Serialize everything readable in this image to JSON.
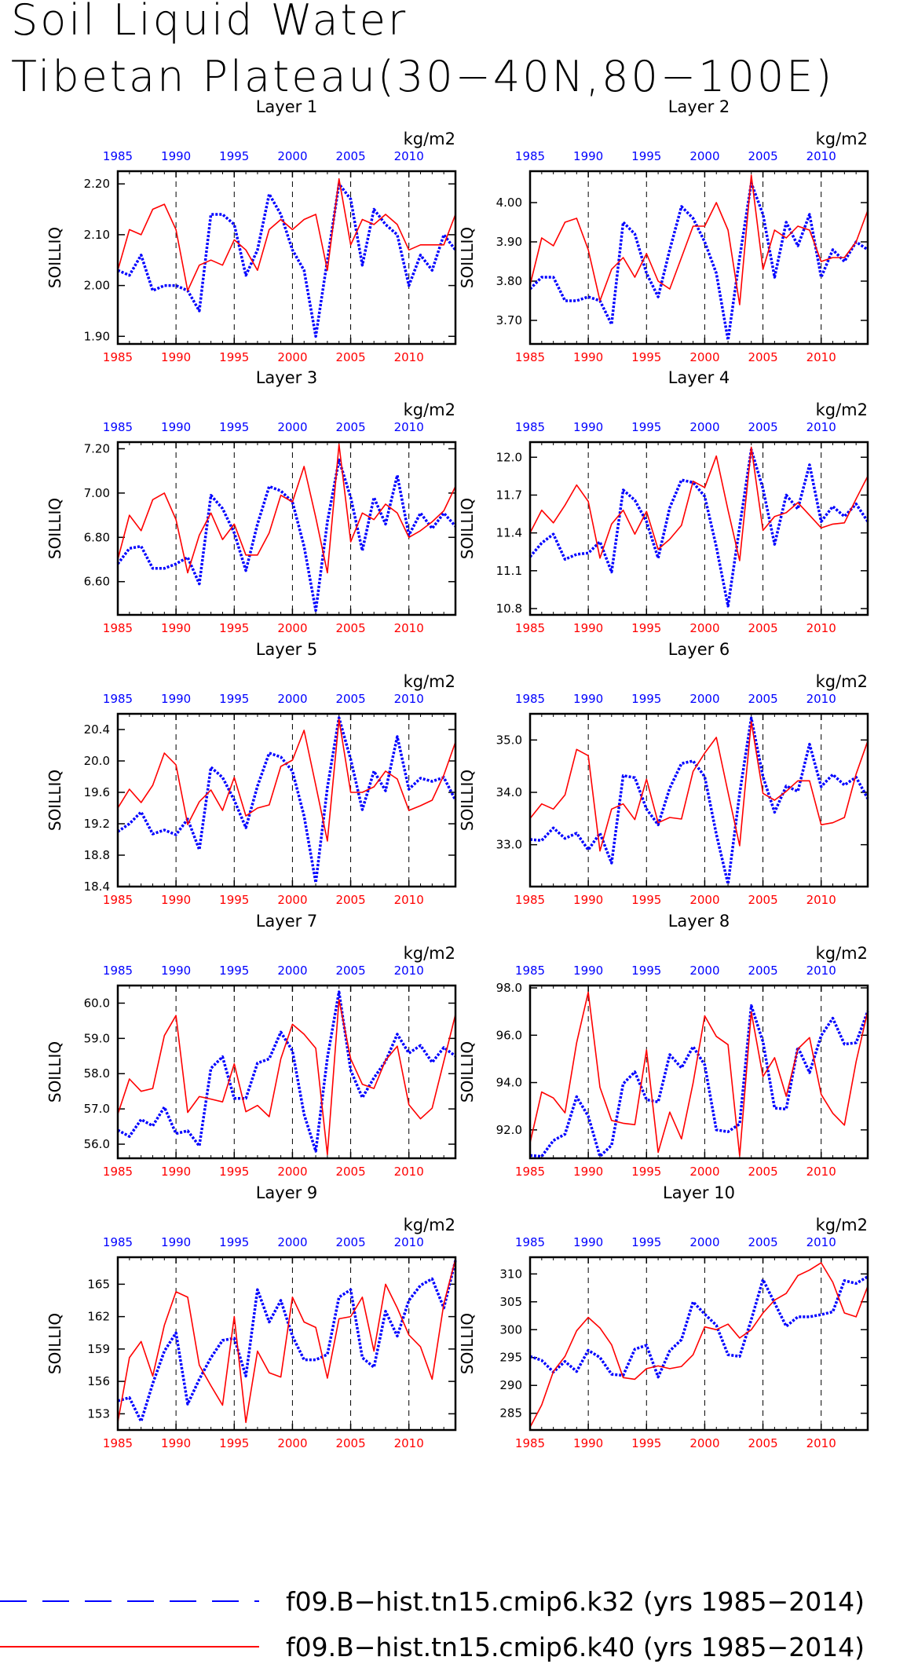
{
  "figure": {
    "title_line1": "Soil Liquid Water",
    "title_line2": "Tibetan Plateau(30−40N,80−100E)",
    "units": "kg/m2",
    "ylabel": "SOILLIQ",
    "colors": {
      "k32": "#0000ff",
      "k40": "#ff0000",
      "axis": "#000000"
    }
  },
  "legend": [
    {
      "label": "f09.B−hist.tn15.cmip6.k32 (yrs 1985−2014)",
      "color": "#0000ff",
      "style": "dashed"
    },
    {
      "label": "f09.B−hist.tn15.cmip6.k40 (yrs 1985−2014)",
      "color": "#ff0000",
      "style": "solid"
    }
  ],
  "chart_data": [
    {
      "type": "line",
      "title": "Layer 1",
      "ylabel": "SOILLIQ",
      "xlim": [
        1985,
        2014
      ],
      "ylim": [
        1.885,
        2.225
      ],
      "xticks": [
        "1985",
        "1990",
        "1995",
        "2000",
        "2005",
        "2010"
      ],
      "yticks": [
        "1.90",
        "2.00",
        "2.10",
        "2.20"
      ],
      "series": [
        {
          "name": "f09.B−hist.tn15.cmip6.k32",
          "color": "#0000ff",
          "values": [
            2.03,
            2.02,
            2.06,
            1.99,
            2.0,
            2.0,
            1.99,
            1.95,
            2.14,
            2.14,
            2.12,
            2.02,
            2.07,
            2.18,
            2.14,
            2.07,
            2.03,
            1.9,
            2.05,
            2.2,
            2.17,
            2.04,
            2.15,
            2.12,
            2.1,
            2.0,
            2.06,
            2.03,
            2.1,
            2.07
          ]
        },
        {
          "name": "f09.B−hist.tn15.cmip6.k40",
          "color": "#ff0000",
          "values": [
            2.03,
            2.11,
            2.1,
            2.15,
            2.16,
            2.11,
            1.99,
            2.04,
            2.05,
            2.04,
            2.09,
            2.07,
            2.03,
            2.11,
            2.13,
            2.11,
            2.13,
            2.14,
            2.03,
            2.21,
            2.08,
            2.13,
            2.12,
            2.14,
            2.12,
            2.07,
            2.08,
            2.08,
            2.08,
            2.14
          ]
        }
      ]
    },
    {
      "type": "line",
      "title": "Layer 2",
      "ylabel": "SOILLIQ",
      "xlim": [
        1985,
        2014
      ],
      "ylim": [
        3.64,
        4.08
      ],
      "xticks": [
        "1985",
        "1990",
        "1995",
        "2000",
        "2005",
        "2010"
      ],
      "yticks": [
        "3.70",
        "3.80",
        "3.90",
        "4.00"
      ],
      "series": [
        {
          "name": "f09.B−hist.tn15.cmip6.k32",
          "color": "#0000ff",
          "values": [
            3.78,
            3.81,
            3.81,
            3.75,
            3.75,
            3.76,
            3.75,
            3.69,
            3.95,
            3.92,
            3.82,
            3.76,
            3.88,
            3.99,
            3.96,
            3.9,
            3.82,
            3.65,
            3.86,
            4.05,
            3.97,
            3.81,
            3.95,
            3.89,
            3.97,
            3.81,
            3.88,
            3.85,
            3.9,
            3.88
          ]
        },
        {
          "name": "f09.B−hist.tn15.cmip6.k40",
          "color": "#ff0000",
          "values": [
            3.79,
            3.91,
            3.89,
            3.95,
            3.96,
            3.88,
            3.75,
            3.83,
            3.86,
            3.81,
            3.87,
            3.8,
            3.78,
            3.86,
            3.94,
            3.94,
            4.0,
            3.93,
            3.74,
            4.07,
            3.83,
            3.93,
            3.91,
            3.94,
            3.93,
            3.85,
            3.86,
            3.86,
            3.9,
            3.98
          ]
        }
      ]
    },
    {
      "type": "line",
      "title": "Layer 3",
      "ylabel": "SOILLIQ",
      "xlim": [
        1985,
        2014
      ],
      "ylim": [
        6.45,
        7.23
      ],
      "xticks": [
        "1985",
        "1990",
        "1995",
        "2000",
        "2005",
        "2010"
      ],
      "yticks": [
        "6.60",
        "6.80",
        "7.00",
        "7.20"
      ],
      "series": [
        {
          "name": "f09.B−hist.tn15.cmip6.k32",
          "color": "#0000ff",
          "values": [
            6.68,
            6.75,
            6.76,
            6.66,
            6.66,
            6.68,
            6.71,
            6.59,
            6.99,
            6.93,
            6.82,
            6.65,
            6.86,
            7.03,
            7.01,
            6.96,
            6.76,
            6.47,
            6.87,
            7.15,
            6.98,
            6.74,
            6.98,
            6.86,
            7.08,
            6.81,
            6.91,
            6.84,
            6.91,
            6.85
          ]
        },
        {
          "name": "f09.B−hist.tn15.cmip6.k40",
          "color": "#ff0000",
          "values": [
            6.7,
            6.9,
            6.83,
            6.97,
            7.0,
            6.88,
            6.64,
            6.81,
            6.91,
            6.79,
            6.86,
            6.72,
            6.72,
            6.82,
            6.99,
            6.96,
            7.12,
            6.89,
            6.64,
            7.22,
            6.78,
            6.91,
            6.88,
            6.95,
            6.91,
            6.8,
            6.83,
            6.87,
            6.92,
            7.03
          ]
        }
      ]
    },
    {
      "type": "line",
      "title": "Layer 4",
      "ylabel": "SOILLIQ",
      "xlim": [
        1985,
        2014
      ],
      "ylim": [
        10.75,
        12.12
      ],
      "xticks": [
        "1985",
        "1990",
        "1995",
        "2000",
        "2005",
        "2010"
      ],
      "yticks": [
        "10.8",
        "11.1",
        "11.4",
        "11.7",
        "12.0"
      ],
      "series": [
        {
          "name": "f09.B−hist.tn15.cmip6.k32",
          "color": "#0000ff",
          "values": [
            11.21,
            11.32,
            11.39,
            11.19,
            11.23,
            11.24,
            11.33,
            11.09,
            11.74,
            11.66,
            11.49,
            11.2,
            11.6,
            11.82,
            11.8,
            11.69,
            11.29,
            10.82,
            11.45,
            12.06,
            11.75,
            11.31,
            11.7,
            11.59,
            11.94,
            11.49,
            11.61,
            11.53,
            11.63,
            11.49
          ]
        },
        {
          "name": "f09.B−hist.tn15.cmip6.k40",
          "color": "#ff0000",
          "values": [
            11.4,
            11.58,
            11.48,
            11.62,
            11.78,
            11.65,
            11.2,
            11.47,
            11.58,
            11.39,
            11.57,
            11.27,
            11.35,
            11.46,
            11.81,
            11.76,
            12.01,
            11.58,
            11.18,
            12.08,
            11.42,
            11.53,
            11.56,
            11.64,
            11.54,
            11.44,
            11.47,
            11.48,
            11.67,
            11.85
          ]
        }
      ]
    },
    {
      "type": "line",
      "title": "Layer 5",
      "ylabel": "SOILLIQ",
      "xlim": [
        1985,
        2014
      ],
      "ylim": [
        18.4,
        20.6
      ],
      "xticks": [
        "1985",
        "1990",
        "1995",
        "2000",
        "2005",
        "2010"
      ],
      "yticks": [
        "18.4",
        "18.8",
        "19.2",
        "19.6",
        "20.0",
        "20.4"
      ],
      "series": [
        {
          "name": "f09.B−hist.tn15.cmip6.k32",
          "color": "#0000ff",
          "values": [
            19.1,
            19.2,
            19.35,
            19.07,
            19.12,
            19.06,
            19.26,
            18.87,
            19.92,
            19.79,
            19.5,
            19.15,
            19.68,
            20.1,
            20.05,
            19.87,
            19.3,
            18.45,
            19.66,
            20.55,
            20.02,
            19.38,
            19.87,
            19.62,
            20.31,
            19.64,
            19.78,
            19.74,
            19.79,
            19.5
          ]
        },
        {
          "name": "f09.B−hist.tn15.cmip6.k40",
          "color": "#ff0000",
          "values": [
            19.4,
            19.64,
            19.47,
            19.69,
            20.1,
            19.95,
            19.19,
            19.48,
            19.63,
            19.37,
            19.79,
            19.3,
            19.4,
            19.44,
            19.93,
            20.01,
            20.39,
            19.69,
            18.98,
            20.53,
            19.6,
            19.6,
            19.67,
            19.87,
            19.77,
            19.37,
            19.43,
            19.5,
            19.82,
            20.24
          ]
        }
      ]
    },
    {
      "type": "line",
      "title": "Layer 6",
      "ylabel": "SOILLIQ",
      "xlim": [
        1985,
        2014
      ],
      "ylim": [
        32.2,
        35.5
      ],
      "xticks": [
        "1985",
        "1990",
        "1995",
        "2000",
        "2005",
        "2010"
      ],
      "yticks": [
        "33.0",
        "34.0",
        "35.0"
      ],
      "series": [
        {
          "name": "f09.B−hist.tn15.cmip6.k32",
          "color": "#0000ff",
          "values": [
            33.1,
            33.08,
            33.32,
            33.12,
            33.22,
            32.9,
            33.22,
            32.65,
            34.32,
            34.28,
            33.68,
            33.38,
            34.08,
            34.55,
            34.6,
            34.3,
            33.2,
            32.25,
            33.98,
            35.42,
            34.3,
            33.62,
            34.12,
            34.02,
            34.92,
            34.11,
            34.34,
            34.14,
            34.29,
            33.88
          ]
        },
        {
          "name": "f09.B−hist.tn15.cmip6.k40",
          "color": "#ff0000",
          "values": [
            33.5,
            33.78,
            33.68,
            33.95,
            34.82,
            34.7,
            32.88,
            33.68,
            33.78,
            33.48,
            34.25,
            33.42,
            33.52,
            33.49,
            34.4,
            34.75,
            35.05,
            34.0,
            32.98,
            35.35,
            33.98,
            33.85,
            34.02,
            34.22,
            34.22,
            33.38,
            33.42,
            33.52,
            34.35,
            34.98
          ]
        }
      ]
    },
    {
      "type": "line",
      "title": "Layer 7",
      "ylabel": "SOILLIQ",
      "xlim": [
        1985,
        2014
      ],
      "ylim": [
        55.6,
        60.5
      ],
      "xticks": [
        "1985",
        "1990",
        "1995",
        "2000",
        "2005",
        "2010"
      ],
      "yticks": [
        "56.0",
        "57.0",
        "58.0",
        "59.0",
        "60.0"
      ],
      "series": [
        {
          "name": "f09.B−hist.tn15.cmip6.k32",
          "color": "#0000ff",
          "values": [
            56.4,
            56.22,
            56.7,
            56.52,
            57.05,
            56.3,
            56.38,
            55.95,
            58.15,
            58.48,
            57.3,
            57.3,
            58.3,
            58.42,
            59.18,
            58.65,
            56.85,
            55.8,
            58.45,
            60.32,
            58.1,
            57.32,
            57.88,
            58.35,
            59.12,
            58.58,
            58.8,
            58.32,
            58.74,
            58.5
          ]
        },
        {
          "name": "f09.B−hist.tn15.cmip6.k40",
          "color": "#ff0000",
          "values": [
            56.85,
            57.85,
            57.5,
            57.58,
            59.08,
            59.65,
            56.9,
            57.35,
            57.28,
            57.2,
            58.28,
            56.92,
            57.1,
            56.78,
            58.42,
            59.4,
            59.12,
            58.72,
            55.7,
            60.1,
            58.42,
            57.7,
            57.58,
            58.38,
            58.78,
            57.12,
            56.72,
            57.02,
            58.35,
            59.68
          ]
        }
      ]
    },
    {
      "type": "line",
      "title": "Layer 8",
      "ylabel": "SOILLIQ",
      "xlim": [
        1985,
        2014
      ],
      "ylim": [
        90.8,
        98.1
      ],
      "xticks": [
        "1985",
        "1990",
        "1995",
        "2000",
        "2005",
        "2010"
      ],
      "yticks": [
        "92.0",
        "94.0",
        "96.0",
        "98.0"
      ],
      "series": [
        {
          "name": "f09.B−hist.tn15.cmip6.k32",
          "color": "#0000ff",
          "values": [
            90.92,
            90.88,
            91.55,
            91.82,
            93.4,
            92.58,
            90.88,
            91.35,
            93.95,
            94.45,
            93.28,
            93.18,
            95.18,
            94.62,
            95.52,
            94.75,
            92.0,
            91.92,
            92.25,
            97.25,
            95.72,
            92.92,
            92.88,
            95.5,
            94.42,
            95.98,
            96.72,
            95.62,
            95.68,
            97.02
          ]
        },
        {
          "name": "f09.B−hist.tn15.cmip6.k40",
          "color": "#ff0000",
          "values": [
            91.45,
            93.6,
            93.35,
            92.72,
            95.68,
            97.82,
            93.8,
            92.4,
            92.28,
            92.22,
            95.38,
            91.05,
            92.75,
            91.62,
            93.98,
            96.82,
            95.95,
            95.6,
            90.9,
            96.98,
            94.25,
            95.05,
            93.42,
            95.42,
            95.9,
            93.5,
            92.7,
            92.2,
            94.88,
            97.02
          ]
        }
      ]
    },
    {
      "type": "line",
      "title": "Layer 9",
      "ylabel": "SOILLIQ",
      "xlim": [
        1985,
        2014
      ],
      "ylim": [
        151.5,
        167.5
      ],
      "xticks": [
        "1985",
        "1990",
        "1995",
        "2000",
        "2005",
        "2010"
      ],
      "yticks": [
        "153",
        "156",
        "159",
        "162",
        "165"
      ],
      "series": [
        {
          "name": "f09.B−hist.tn15.cmip6.k32",
          "color": "#0000ff",
          "values": [
            154.2,
            154.5,
            152.3,
            155.8,
            158.8,
            160.5,
            153.9,
            156.2,
            158.2,
            159.8,
            160.0,
            156.5,
            164.5,
            161.5,
            163.5,
            160.2,
            158.0,
            158.0,
            158.5,
            163.8,
            164.5,
            158.2,
            157.3,
            162.5,
            160.2,
            163.5,
            164.9,
            165.5,
            162.8,
            167.2
          ]
        },
        {
          "name": "f09.B−hist.tn15.cmip6.k40",
          "color": "#ff0000",
          "values": [
            152.2,
            158.2,
            159.7,
            156.5,
            161.2,
            164.3,
            163.8,
            157.5,
            155.6,
            153.8,
            162.0,
            152.2,
            158.8,
            156.8,
            156.4,
            163.8,
            161.5,
            161.0,
            156.3,
            161.8,
            162.0,
            163.8,
            158.8,
            165.0,
            162.8,
            160.3,
            159.2,
            156.2,
            163.2,
            167.3
          ]
        }
      ]
    },
    {
      "type": "line",
      "title": "Layer 10",
      "ylabel": "SOILLIQ",
      "xlim": [
        1985,
        2014
      ],
      "ylim": [
        282,
        313
      ],
      "xticks": [
        "1985",
        "1990",
        "1995",
        "2000",
        "2005",
        "2010"
      ],
      "yticks": [
        "285",
        "290",
        "295",
        "300",
        "305",
        "310"
      ],
      "series": [
        {
          "name": "f09.B−hist.tn15.cmip6.k32",
          "color": "#0000ff",
          "values": [
            295.2,
            294.5,
            292.4,
            294.3,
            292.5,
            296.3,
            295.0,
            292.0,
            291.8,
            296.5,
            297.2,
            291.5,
            296.2,
            298.2,
            305.0,
            302.8,
            300.8,
            295.5,
            295.2,
            301.8,
            309.0,
            304.8,
            300.6,
            302.3,
            302.3,
            302.7,
            303.2,
            308.8,
            308.3,
            309.5
          ]
        },
        {
          "name": "f09.B−hist.tn15.cmip6.k40",
          "color": "#ff0000",
          "values": [
            282.5,
            286.5,
            292.5,
            295.2,
            299.8,
            302.2,
            300.3,
            297.3,
            291.4,
            291.1,
            293.0,
            293.5,
            293.0,
            293.4,
            295.5,
            300.5,
            300.0,
            301.0,
            298.5,
            300.0,
            303.0,
            305.3,
            306.5,
            309.7,
            310.7,
            312.0,
            308.5,
            303.0,
            302.3,
            307.8
          ]
        }
      ]
    }
  ]
}
